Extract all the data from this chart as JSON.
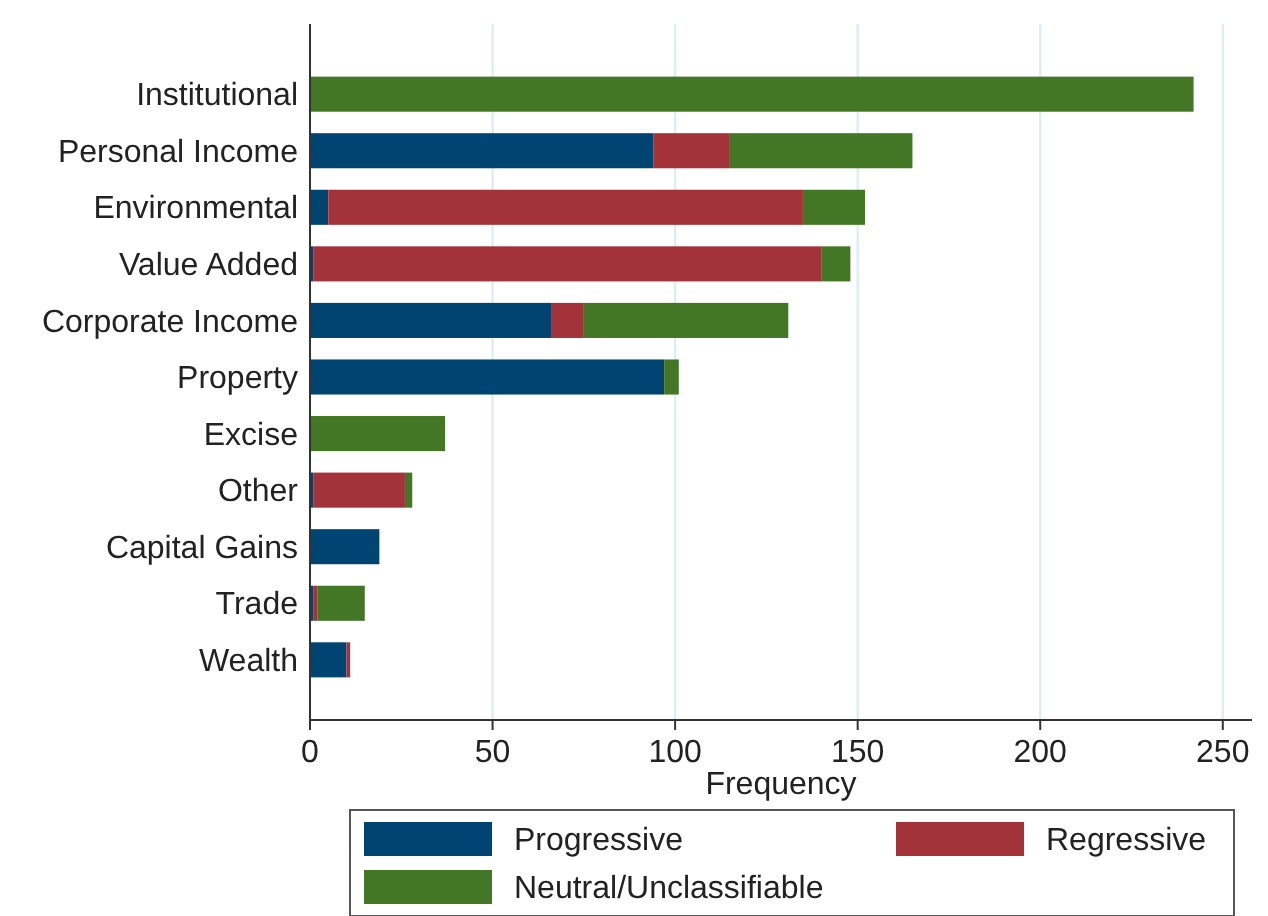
{
  "chart_data": {
    "type": "bar",
    "orientation": "horizontal",
    "stacked": true,
    "xlabel": "Frequency",
    "categories": [
      "Institutional",
      "Personal Income",
      "Environmental",
      "Value Added",
      "Corporate Income",
      "Property",
      "Excise",
      "Other",
      "Capital Gains",
      "Trade",
      "Wealth"
    ],
    "series": [
      {
        "name": "Progressive",
        "color": "#004471",
        "values": [
          0,
          94,
          5,
          1,
          66,
          97,
          0,
          1,
          19,
          1,
          10
        ]
      },
      {
        "name": "Regressive",
        "color": "#a4323a",
        "values": [
          0,
          21,
          130,
          139,
          9,
          0,
          0,
          25,
          0,
          1,
          1
        ]
      },
      {
        "name": "Neutral/Unclassifiable",
        "color": "#437625",
        "values": [
          242,
          50,
          17,
          8,
          56,
          4,
          37,
          2,
          0,
          13,
          0
        ]
      }
    ],
    "xlim": [
      0,
      258
    ],
    "xticks": [
      0,
      50,
      100,
      150,
      200,
      250
    ],
    "grid": "x",
    "legend": "bottom"
  }
}
